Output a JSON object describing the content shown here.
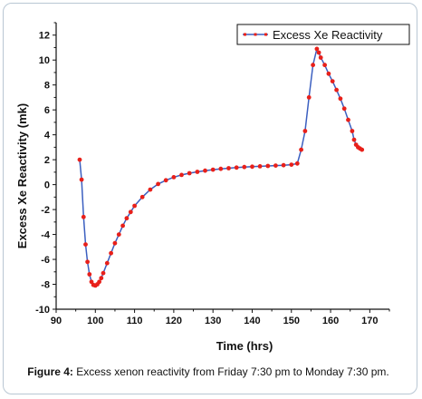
{
  "chart_data": {
    "type": "line",
    "xlabel": "Time (hrs)",
    "ylabel": "Excess Xe Reactivity (mk)",
    "xlim": [
      90,
      175
    ],
    "ylim": [
      -10,
      13
    ],
    "xticks": [
      90,
      100,
      110,
      120,
      130,
      140,
      150,
      160,
      170
    ],
    "yticks": [
      -10,
      -8,
      -6,
      -4,
      -2,
      0,
      2,
      4,
      6,
      8,
      10,
      12
    ],
    "grid": false,
    "legend_position": "top-right",
    "line_color": "#3b5fc0",
    "marker_color": "#e8201a",
    "series": [
      {
        "name": "Excess Xe Reactivity",
        "x": [
          96,
          96.5,
          97,
          97.5,
          98,
          98.5,
          99,
          99.5,
          100,
          100.5,
          101,
          101.5,
          102,
          103,
          104,
          105,
          106,
          107,
          108,
          109,
          110,
          112,
          114,
          116,
          118,
          120,
          122,
          124,
          126,
          128,
          130,
          132,
          134,
          136,
          138,
          140,
          142,
          144,
          146,
          148,
          150,
          151.5,
          152.5,
          153.5,
          154.5,
          155.5,
          156.5,
          157,
          157.5,
          158.5,
          159.5,
          160.5,
          161.5,
          162.5,
          163.5,
          164.5,
          165.5,
          166,
          166.5,
          167,
          167.5,
          168
        ],
        "y": [
          2.0,
          0.4,
          -2.6,
          -4.8,
          -6.2,
          -7.2,
          -7.8,
          -8.05,
          -8.1,
          -8.0,
          -7.8,
          -7.5,
          -7.1,
          -6.3,
          -5.5,
          -4.7,
          -4.0,
          -3.3,
          -2.7,
          -2.2,
          -1.7,
          -1.0,
          -0.4,
          0.05,
          0.35,
          0.6,
          0.78,
          0.92,
          1.03,
          1.12,
          1.2,
          1.27,
          1.32,
          1.37,
          1.41,
          1.44,
          1.47,
          1.5,
          1.53,
          1.56,
          1.6,
          1.7,
          2.8,
          4.3,
          7.0,
          9.6,
          10.9,
          10.6,
          10.2,
          9.6,
          8.9,
          8.3,
          7.6,
          6.9,
          6.1,
          5.2,
          4.3,
          3.6,
          3.2,
          3.0,
          2.9,
          2.8
        ]
      }
    ]
  },
  "caption": {
    "label": "Figure 4:",
    "text": " Excess xenon reactivity from Friday 7:30 pm to Monday 7:30 pm."
  }
}
